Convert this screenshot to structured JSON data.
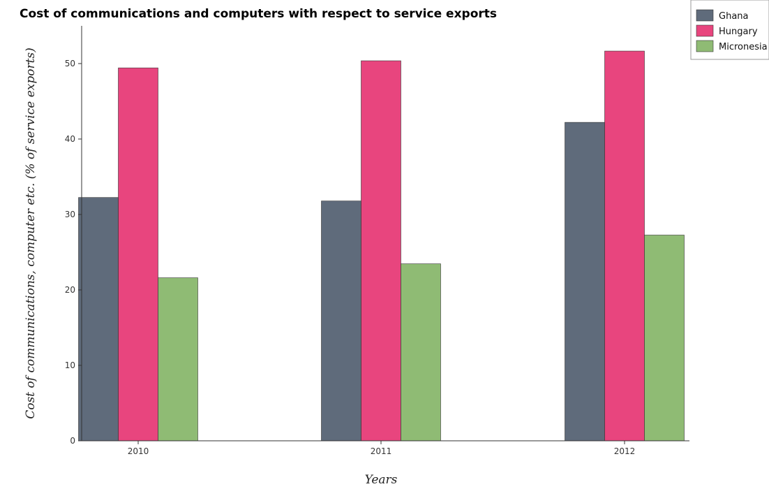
{
  "chart_data": {
    "type": "bar",
    "title": "Cost of communications and computers with respect to service exports",
    "xlabel": "Years",
    "ylabel": "Cost of communications, computer etc. (% of service exports)",
    "categories": [
      "2010",
      "2011",
      "2012"
    ],
    "ylim": [
      0,
      55
    ],
    "yticks": [
      0,
      10,
      20,
      30,
      40,
      50
    ],
    "grid": false,
    "legend_position": "top-right",
    "series": [
      {
        "name": "Ghana",
        "color": "#5f6b7b",
        "values": [
          32.25,
          31.79,
          42.21
        ]
      },
      {
        "name": "Hungary",
        "color": "#e8457e",
        "values": [
          49.43,
          50.37,
          51.66
        ]
      },
      {
        "name": "Micronesia",
        "color": "#8fbb74",
        "values": [
          21.61,
          23.46,
          27.27
        ]
      }
    ]
  }
}
